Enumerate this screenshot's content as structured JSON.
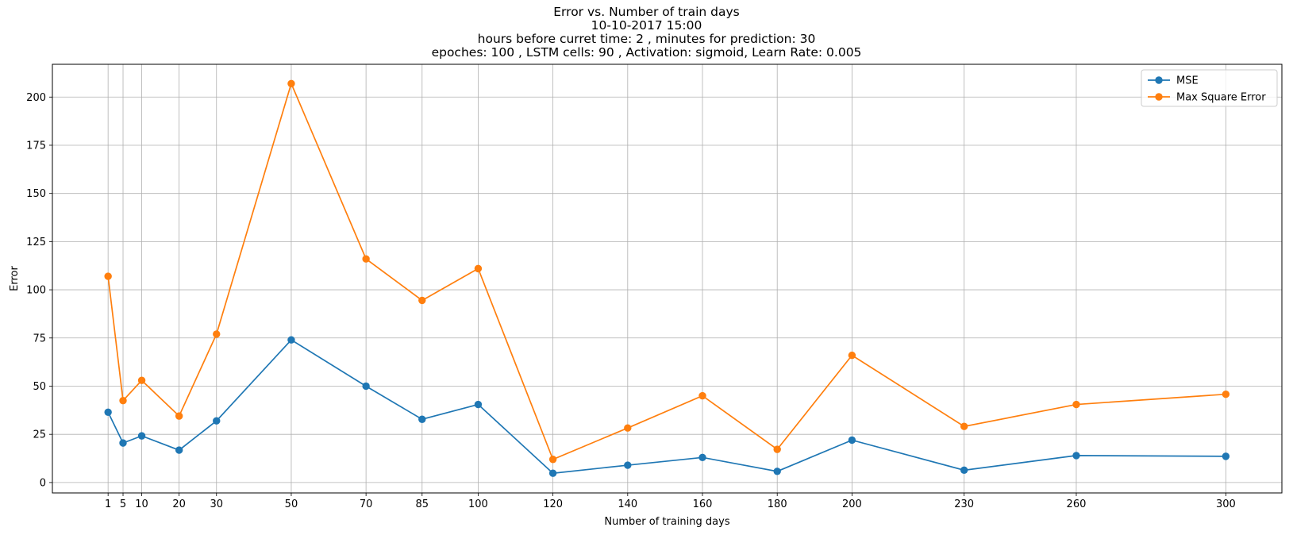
{
  "chart_data": {
    "type": "line",
    "title": [
      "Error vs. Number of train days",
      "10-10-2017 15:00",
      "hours before curret time: 2 , minutes for prediction: 30",
      "epoches: 100 , LSTM cells: 90 , Activation: sigmoid, Learn Rate: 0.005"
    ],
    "xlabel": "Number of training days",
    "ylabel": "Error",
    "x": [
      1,
      5,
      10,
      20,
      30,
      50,
      70,
      85,
      100,
      120,
      140,
      160,
      180,
      200,
      230,
      260,
      300
    ],
    "xticks": [
      1,
      5,
      10,
      20,
      30,
      50,
      70,
      85,
      100,
      120,
      140,
      160,
      180,
      200,
      230,
      260,
      300
    ],
    "yticks": [
      0,
      25,
      50,
      75,
      100,
      125,
      150,
      175,
      200
    ],
    "xlim": [
      -13.9,
      315
    ],
    "ylim": [
      -5.4,
      217
    ],
    "grid": true,
    "legend_position": "top-right",
    "series": [
      {
        "name": "MSE",
        "color": "#1f77b4",
        "values": [
          36.5,
          20.5,
          24.2,
          16.8,
          32.0,
          74.0,
          50.0,
          32.8,
          40.5,
          4.8,
          9.0,
          13.0,
          5.8,
          22.0,
          6.4,
          14.0,
          13.6
        ]
      },
      {
        "name": "Max Square Error",
        "color": "#ff7f0e",
        "values": [
          107.0,
          42.5,
          53.0,
          34.5,
          77.0,
          207.0,
          116.0,
          94.5,
          111.0,
          12.0,
          28.3,
          45.0,
          17.2,
          66.0,
          29.1,
          40.5,
          45.8
        ]
      }
    ]
  }
}
